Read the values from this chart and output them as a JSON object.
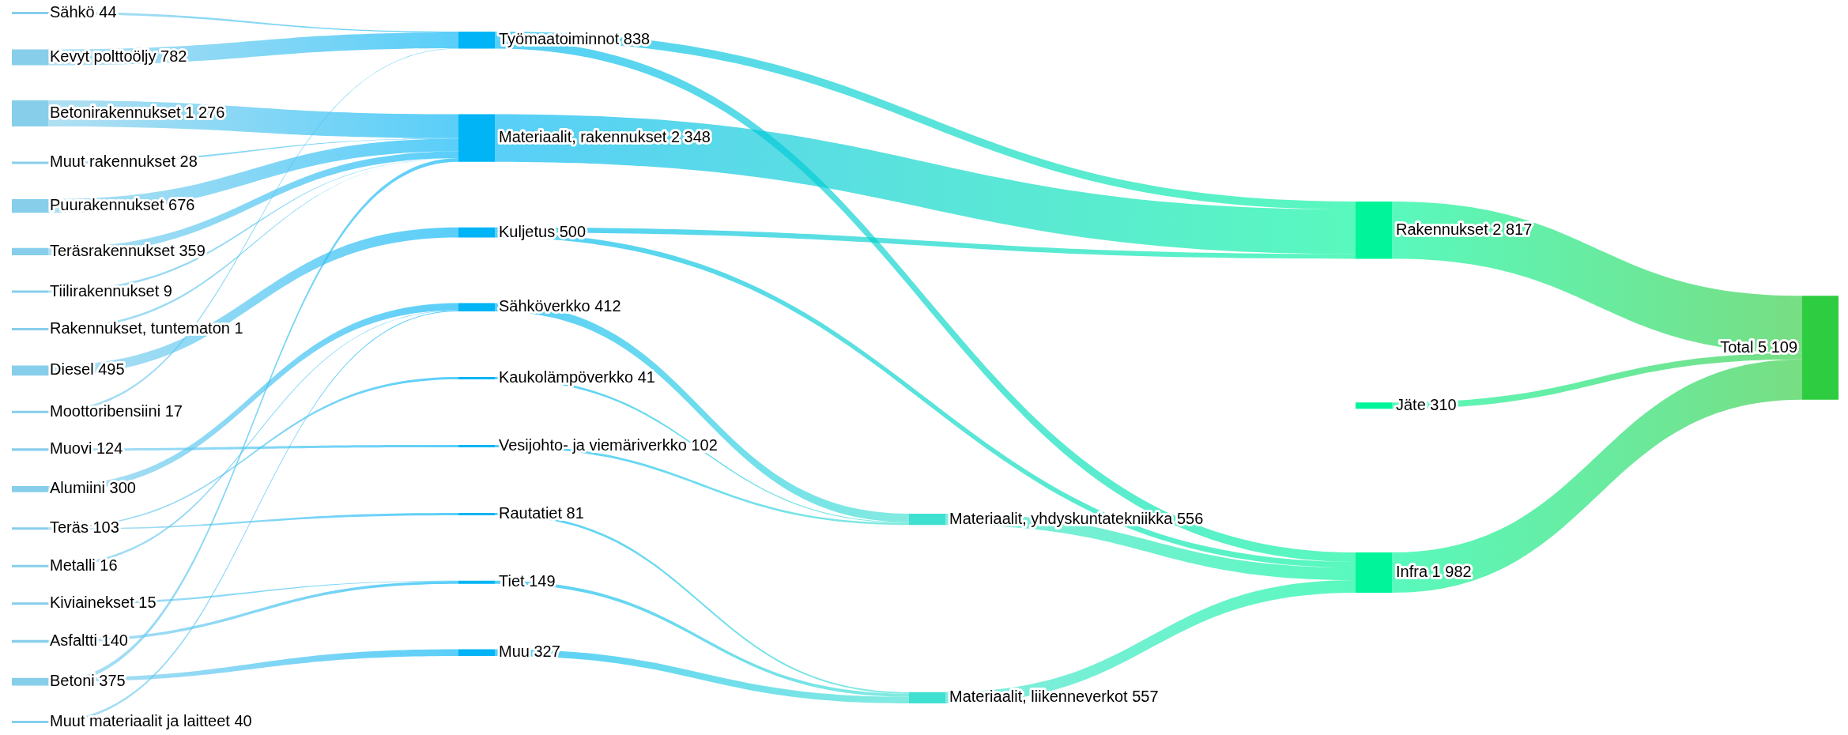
{
  "chart_data": {
    "type": "other",
    "categories": [
      "Sähkö",
      "Kevyt polttoöljy",
      "Betonirakennukset",
      "Muut rakennukset",
      "Puurakennukset",
      "Teräsrakennukset",
      "Tiilirakennukset",
      "Rakennukset, tuntematon",
      "Diesel",
      "Moottoribensiini",
      "Muovi",
      "Alumiini",
      "Teräs",
      "Metalli",
      "Kiviainekset",
      "Asfaltti",
      "Betoni",
      "Muut materiaalit ja laitteet",
      "Työmaatoiminnot",
      "Materiaalit, rakennukset",
      "Kuljetus",
      "Sähköverkko",
      "Kaukolämpöverkko",
      "Vesijohto- ja viemäriverkko",
      "Rautatiet",
      "Tiet",
      "Muu",
      "Materiaalit, yhdyskuntatekniikka",
      "Materiaalit, liikenneverkot",
      "Rakennukset",
      "Jäte",
      "Infra",
      "Total"
    ],
    "series": [
      {
        "color": "#87ceeb",
        "values": [
          44,
          782,
          1276,
          28,
          676,
          359,
          9,
          1,
          495,
          17,
          124,
          300,
          103,
          16,
          15,
          140,
          375,
          40,
          null,
          null,
          null,
          null,
          null,
          null,
          null,
          null,
          null,
          null,
          null,
          null,
          null,
          null,
          null
        ],
        "value_labels": [
          "44",
          "782",
          "1 276",
          "28",
          "676",
          "359",
          "9",
          "1",
          "495",
          "17",
          "124",
          "300",
          "103",
          "16",
          "15",
          "140",
          "375",
          "40",
          null,
          null,
          null,
          null,
          null,
          null,
          null,
          null,
          null,
          null,
          null,
          null,
          null,
          null,
          null
        ]
      },
      {
        "color": "#00b4f5",
        "values": [
          null,
          null,
          null,
          null,
          null,
          null,
          null,
          null,
          null,
          null,
          null,
          null,
          null,
          null,
          null,
          null,
          null,
          null,
          838,
          2348,
          500,
          412,
          41,
          102,
          81,
          149,
          327,
          null,
          null,
          null,
          null,
          null,
          null
        ],
        "value_labels": [
          null,
          null,
          null,
          null,
          null,
          null,
          null,
          null,
          null,
          null,
          null,
          null,
          null,
          null,
          null,
          null,
          null,
          null,
          "838",
          "2 348",
          "500",
          "412",
          "41",
          "102",
          "81",
          "149",
          "327",
          null,
          null,
          null,
          null,
          null,
          null
        ]
      },
      {
        "color": "#40e0d0",
        "values": [
          null,
          null,
          null,
          null,
          null,
          null,
          null,
          null,
          null,
          null,
          null,
          null,
          null,
          null,
          null,
          null,
          null,
          null,
          null,
          null,
          null,
          null,
          null,
          null,
          null,
          null,
          null,
          556,
          557,
          null,
          null,
          null,
          null
        ],
        "value_labels": [
          null,
          null,
          null,
          null,
          null,
          null,
          null,
          null,
          null,
          null,
          null,
          null,
          null,
          null,
          null,
          null,
          null,
          null,
          null,
          null,
          null,
          null,
          null,
          null,
          null,
          null,
          null,
          "556",
          "557",
          null,
          null,
          null,
          null
        ]
      },
      {
        "color": "#00f59a",
        "values": [
          null,
          null,
          null,
          null,
          null,
          null,
          null,
          null,
          null,
          null,
          null,
          null,
          null,
          null,
          null,
          null,
          null,
          null,
          null,
          null,
          null,
          null,
          null,
          null,
          null,
          null,
          null,
          null,
          null,
          2817,
          310,
          1982,
          null
        ],
        "value_labels": [
          null,
          null,
          null,
          null,
          null,
          null,
          null,
          null,
          null,
          null,
          null,
          null,
          null,
          null,
          null,
          null,
          null,
          null,
          null,
          null,
          null,
          null,
          null,
          null,
          null,
          null,
          null,
          null,
          null,
          "2 817",
          "310",
          "1 982",
          null
        ]
      },
      {
        "color": "#2ecc40",
        "values": [
          null,
          null,
          null,
          null,
          null,
          null,
          null,
          null,
          null,
          null,
          null,
          null,
          null,
          null,
          null,
          null,
          null,
          null,
          null,
          null,
          null,
          null,
          null,
          null,
          null,
          null,
          null,
          null,
          null,
          null,
          null,
          null,
          5109
        ],
        "value_labels": [
          null,
          null,
          null,
          null,
          null,
          null,
          null,
          null,
          null,
          null,
          null,
          null,
          null,
          null,
          null,
          null,
          null,
          null,
          null,
          null,
          null,
          null,
          null,
          null,
          null,
          null,
          null,
          null,
          null,
          null,
          null,
          null,
          "5 109"
        ]
      }
    ]
  }
}
